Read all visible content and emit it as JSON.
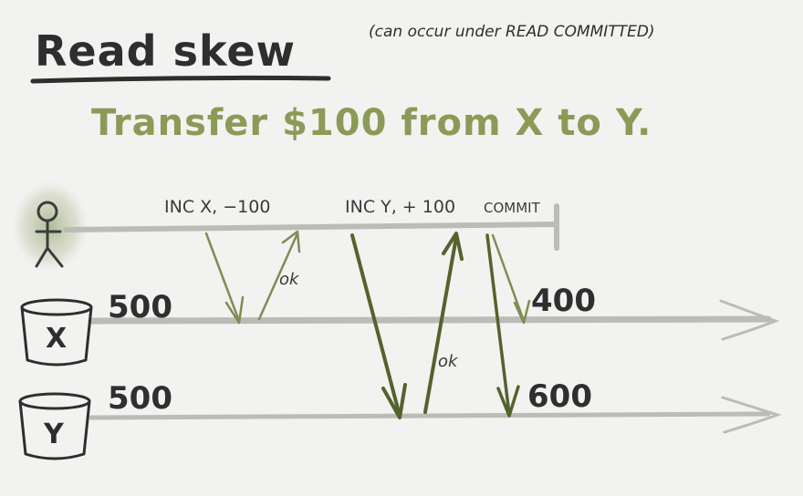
{
  "title": "Read skew",
  "subtitle": "(can occur under READ COMMITTED)",
  "headline": "Transfer $100 from X to Y.",
  "transaction": {
    "op1": "INC X, −100",
    "op2": "INC Y, + 100",
    "op3": "COMMIT",
    "ack1": "ok",
    "ack2": "ok"
  },
  "objects": {
    "x": {
      "label": "X",
      "initial": "500",
      "final": "400"
    },
    "y": {
      "label": "Y",
      "initial": "500",
      "final": "600"
    }
  },
  "colors": {
    "ink": "#2e2e2e",
    "green": "#8c9a57",
    "timeline": "#b9bdb6",
    "arrow_dark": "#54622d",
    "arrow_light": "#7f8c55"
  },
  "icons": {
    "person": "stick-figure-icon",
    "x_bucket": "bucket-icon",
    "y_bucket": "bucket-icon"
  }
}
